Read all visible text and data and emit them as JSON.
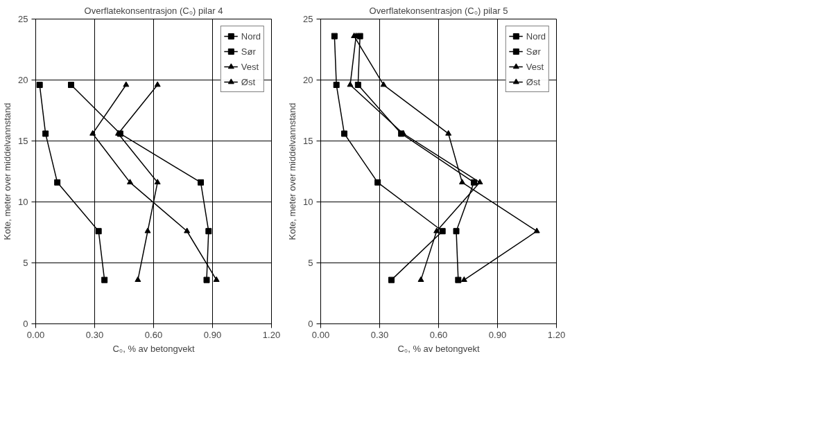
{
  "chart_data": [
    {
      "type": "line",
      "title": "Overflatekonsentrasjon (C₀) pilar 4",
      "xlabel": "C₀, % av betongvekt",
      "ylabel": "Kote, meter over middelvannstand",
      "xlim": [
        0,
        1.2
      ],
      "xticks": [
        {
          "value": 0,
          "label": "0.00"
        },
        {
          "value": 0.3,
          "label": "0.30"
        },
        {
          "value": 0.6,
          "label": "0.60"
        },
        {
          "value": 0.9,
          "label": "0.90"
        },
        {
          "value": 1.2,
          "label": "1.20"
        }
      ],
      "ylim": [
        0,
        25
      ],
      "yticks": [
        0,
        5,
        10,
        15,
        20,
        25
      ],
      "grid": true,
      "legend": "top right",
      "series": [
        {
          "name": "Nord",
          "color": "#000000",
          "marker": "square",
          "x": [
            0.18,
            0.43,
            0.84,
            0.88,
            0.87
          ],
          "values": [
            19.6,
            15.6,
            11.6,
            7.6,
            3.6
          ]
        },
        {
          "name": "Sør",
          "color": "#000000",
          "marker": "square",
          "x": [
            0.02,
            0.05,
            0.11,
            0.32,
            0.35
          ],
          "values": [
            19.6,
            15.6,
            11.6,
            7.6,
            3.6
          ]
        },
        {
          "name": "Vest",
          "color": "#000000",
          "marker": "triangle",
          "x": [
            0.46,
            0.29,
            0.48,
            0.77,
            0.92
          ],
          "values": [
            19.6,
            15.6,
            11.6,
            7.6,
            3.6
          ]
        },
        {
          "name": "Øst",
          "color": "#000000",
          "marker": "triangle",
          "x": [
            0.62,
            0.42,
            0.62,
            0.57,
            0.52
          ],
          "values": [
            19.6,
            15.6,
            11.6,
            7.6,
            3.6
          ]
        }
      ]
    },
    {
      "type": "line",
      "title": "Overflatekonsentrasjon (C₀) pilar 5",
      "xlabel": "C₀, % av betongvekt",
      "ylabel": "Kote, meter over middelvannstand",
      "xlim": [
        0,
        1.2
      ],
      "xticks": [
        {
          "value": 0,
          "label": "0.00"
        },
        {
          "value": 0.3,
          "label": "0.30"
        },
        {
          "value": 0.6,
          "label": "0.60"
        },
        {
          "value": 0.9,
          "label": "0.90"
        },
        {
          "value": 1.2,
          "label": "1.20"
        }
      ],
      "ylim": [
        0,
        25
      ],
      "yticks": [
        0,
        5,
        10,
        15,
        20,
        25
      ],
      "grid": true,
      "legend": "top right",
      "series": [
        {
          "name": "Nord",
          "color": "#000000",
          "marker": "square",
          "x": [
            0.2,
            0.19,
            0.41,
            0.78,
            0.69,
            0.7
          ],
          "values": [
            23.6,
            19.6,
            15.6,
            11.6,
            7.6,
            3.6
          ]
        },
        {
          "name": "Sør",
          "color": "#000000",
          "marker": "square",
          "x": [
            0.07,
            0.08,
            0.12,
            0.29,
            0.62,
            0.36
          ],
          "values": [
            23.6,
            19.6,
            15.6,
            11.6,
            7.6,
            3.6
          ]
        },
        {
          "name": "Vest",
          "color": "#000000",
          "marker": "triangle",
          "x": [
            0.18,
            0.15,
            0.42,
            0.81,
            0.59,
            0.51
          ],
          "values": [
            23.6,
            19.6,
            15.6,
            11.6,
            7.6,
            3.6
          ]
        },
        {
          "name": "Øst",
          "color": "#000000",
          "marker": "triangle",
          "x": [
            0.17,
            0.32,
            0.65,
            0.72,
            1.1,
            0.73
          ],
          "values": [
            23.6,
            19.6,
            15.6,
            11.6,
            7.6,
            3.6
          ]
        }
      ]
    }
  ]
}
